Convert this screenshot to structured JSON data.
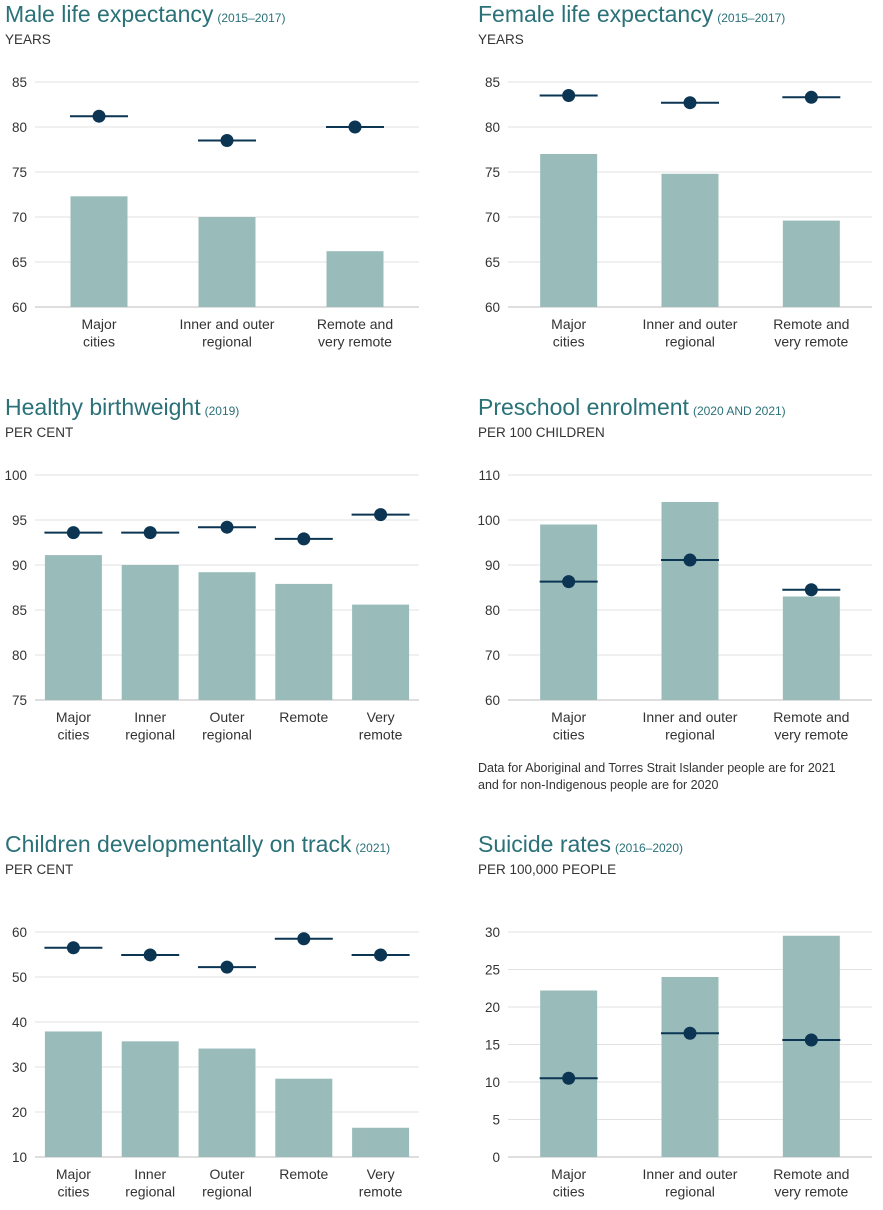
{
  "colors": {
    "bar": "#99bbba",
    "marker": "#0b3552",
    "grid": "#e2e2e2",
    "title": "#2a7178",
    "text": "#333333"
  },
  "chart_data": [
    {
      "type": "bar",
      "title": "Male life expectancy",
      "period": "(2015–2017)",
      "unit": "YEARS",
      "categories": [
        [
          "Major",
          "cities"
        ],
        [
          "Inner and outer",
          "regional"
        ],
        [
          "Remote and",
          "very remote"
        ]
      ],
      "series": [
        {
          "name": "Aboriginal and Torres Strait Islander people",
          "kind": "bar",
          "values": [
            72.3,
            70.0,
            66.2
          ]
        },
        {
          "name": "Non-Indigenous people",
          "kind": "marker",
          "values": [
            81.2,
            78.5,
            80.0
          ]
        }
      ],
      "ylim": [
        60,
        85
      ],
      "yticks": [
        60,
        65,
        70,
        75,
        80,
        85
      ]
    },
    {
      "type": "bar",
      "title": "Female life expectancy",
      "period": "(2015–2017)",
      "unit": "YEARS",
      "categories": [
        [
          "Major",
          "cities"
        ],
        [
          "Inner and outer",
          "regional"
        ],
        [
          "Remote and",
          "very remote"
        ]
      ],
      "series": [
        {
          "name": "Aboriginal and Torres Strait Islander people",
          "kind": "bar",
          "values": [
            77.0,
            74.8,
            69.6
          ]
        },
        {
          "name": "Non-Indigenous people",
          "kind": "marker",
          "values": [
            83.5,
            82.7,
            83.3
          ]
        }
      ],
      "ylim": [
        60,
        85
      ],
      "yticks": [
        60,
        65,
        70,
        75,
        80,
        85
      ]
    },
    {
      "type": "bar",
      "title": "Healthy birthweight",
      "period": "(2019)",
      "unit": "PER CENT",
      "categories": [
        [
          "Major",
          "cities"
        ],
        [
          "Inner",
          "regional"
        ],
        [
          "Outer",
          "regional"
        ],
        [
          "Remote"
        ],
        [
          "Very",
          "remote"
        ]
      ],
      "series": [
        {
          "name": "Aboriginal and Torres Strait Islander people",
          "kind": "bar",
          "values": [
            91.1,
            90.0,
            89.2,
            87.9,
            85.6
          ]
        },
        {
          "name": "Non-Indigenous people",
          "kind": "marker",
          "values": [
            93.6,
            93.6,
            94.2,
            92.9,
            95.6
          ]
        }
      ],
      "ylim": [
        75,
        100
      ],
      "yticks": [
        75,
        80,
        85,
        90,
        95,
        100
      ]
    },
    {
      "type": "bar",
      "title": "Preschool enrolment",
      "period": "(2020 AND 2021)",
      "unit": "PER 100 CHILDREN",
      "categories": [
        [
          "Major",
          "cities"
        ],
        [
          "Inner and outer",
          "regional"
        ],
        [
          "Remote and",
          "very remote"
        ]
      ],
      "series": [
        {
          "name": "Aboriginal and Torres Strait Islander people",
          "kind": "bar",
          "values": [
            99.0,
            104.0,
            83.0
          ]
        },
        {
          "name": "Non-Indigenous people",
          "kind": "marker",
          "values": [
            86.3,
            91.1,
            84.5
          ]
        }
      ],
      "ylim": [
        60,
        110
      ],
      "yticks": [
        60,
        70,
        80,
        90,
        100,
        110
      ],
      "note": [
        "Data for Aboriginal and Torres Strait Islander people are for 2021",
        "and for non-Indigenous people are for 2020"
      ]
    },
    {
      "type": "bar",
      "title": "Children developmentally on track",
      "period": "(2021)",
      "unit": "PER CENT",
      "categories": [
        [
          "Major",
          "cities"
        ],
        [
          "Inner",
          "regional"
        ],
        [
          "Outer",
          "regional"
        ],
        [
          "Remote"
        ],
        [
          "Very",
          "remote"
        ]
      ],
      "series": [
        {
          "name": "Aboriginal and Torres Strait Islander people",
          "kind": "bar",
          "values": [
            37.9,
            35.7,
            34.1,
            27.4,
            16.5
          ]
        },
        {
          "name": "Non-Indigenous people",
          "kind": "marker",
          "values": [
            56.5,
            54.9,
            52.2,
            58.5,
            54.9
          ]
        }
      ],
      "ylim": [
        10,
        60
      ],
      "yticks": [
        10,
        20,
        30,
        40,
        50,
        60
      ]
    },
    {
      "type": "bar",
      "title": "Suicide rates",
      "period": "(2016–2020)",
      "unit": "PER 100,000 PEOPLE",
      "categories": [
        [
          "Major",
          "cities"
        ],
        [
          "Inner and outer",
          "regional"
        ],
        [
          "Remote and",
          "very remote"
        ]
      ],
      "series": [
        {
          "name": "Aboriginal and Torres Strait Islander people",
          "kind": "bar",
          "values": [
            22.2,
            24.0,
            29.5
          ]
        },
        {
          "name": "Non-Indigenous people",
          "kind": "marker",
          "values": [
            10.5,
            16.5,
            15.6
          ]
        }
      ],
      "ylim": [
        0,
        30
      ],
      "yticks": [
        0,
        5,
        10,
        15,
        20,
        25,
        30
      ]
    }
  ]
}
